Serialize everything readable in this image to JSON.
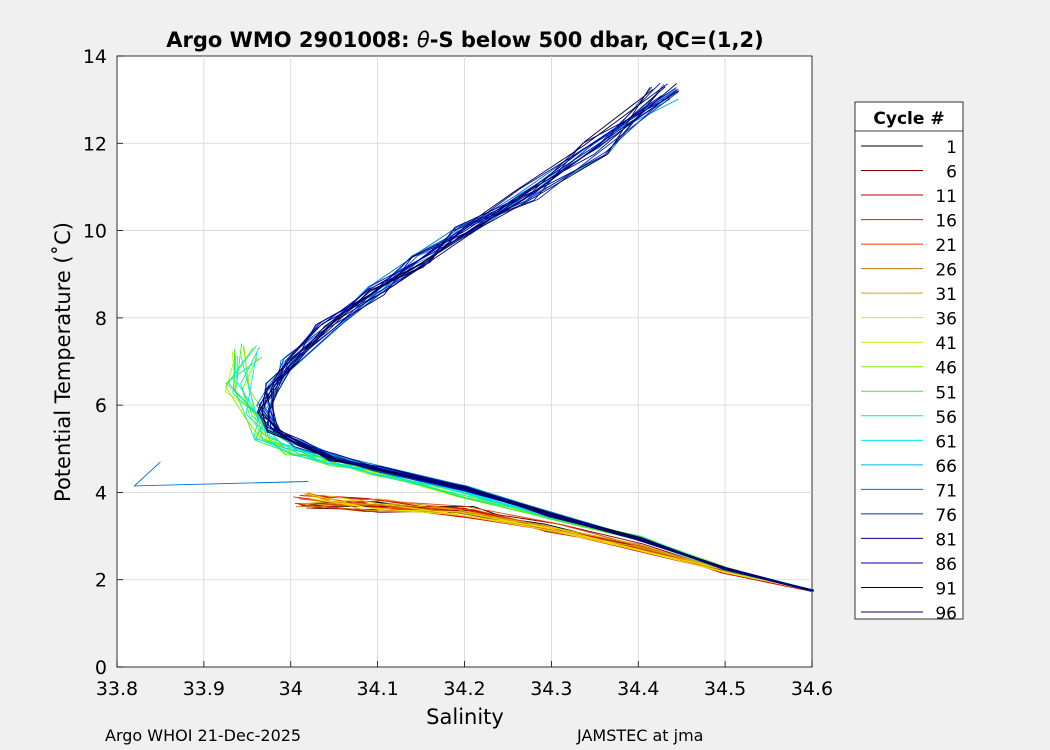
{
  "chart_data": {
    "type": "line",
    "title_prefix": "Argo WMO 2901008: ",
    "title_theta": "θ",
    "title_suffix": "-S below 500 dbar,  QC=(1,2)",
    "xlabel": "Salinity",
    "ylabel": "Potential Temperature (˚C)",
    "xlim": [
      33.8,
      34.6
    ],
    "ylim": [
      0,
      14
    ],
    "xticks": [
      "33.8",
      "33.9",
      "34",
      "34.1",
      "34.2",
      "34.3",
      "34.4",
      "34.5",
      "34.6"
    ],
    "yticks": [
      "0",
      "2",
      "4",
      "6",
      "8",
      "10",
      "12",
      "14"
    ],
    "grid": true,
    "legend_title": "Cycle #",
    "legend_location": "right-outside",
    "series": [
      {
        "name": "1",
        "color": "#000000",
        "group": "warm"
      },
      {
        "name": "6",
        "color": "#7a0000",
        "group": "warm"
      },
      {
        "name": "11",
        "color": "#c00000",
        "group": "warm"
      },
      {
        "name": "16",
        "color": "#e01a00",
        "group": "warm"
      },
      {
        "name": "21",
        "color": "#f04000",
        "group": "warm"
      },
      {
        "name": "26",
        "color": "#c87000",
        "group": "warm"
      },
      {
        "name": "31",
        "color": "#d6a800",
        "group": "warm"
      },
      {
        "name": "36",
        "color": "#f0e000",
        "group": "warm"
      },
      {
        "name": "41",
        "color": "#c0f000",
        "group": "mid"
      },
      {
        "name": "46",
        "color": "#80f000",
        "group": "mid"
      },
      {
        "name": "51",
        "color": "#30f030",
        "group": "mid"
      },
      {
        "name": "56",
        "color": "#00f0a0",
        "group": "mid"
      },
      {
        "name": "61",
        "color": "#00e8e8",
        "group": "mid"
      },
      {
        "name": "66",
        "color": "#00b0e8",
        "group": "cool"
      },
      {
        "name": "71",
        "color": "#0070d0",
        "group": "cool"
      },
      {
        "name": "76",
        "color": "#0030c0",
        "group": "cool"
      },
      {
        "name": "81",
        "color": "#000090",
        "group": "cool"
      },
      {
        "name": "86",
        "color": "#0000b0",
        "group": "cool"
      },
      {
        "name": "91",
        "color": "#000040",
        "group": "cool"
      },
      {
        "name": "96",
        "color": "#000070",
        "group": "cool"
      }
    ],
    "profiles": {
      "warm": [
        [
          34.6,
          1.75
        ],
        [
          34.5,
          2.2
        ],
        [
          34.4,
          2.75
        ],
        [
          34.3,
          3.2
        ],
        [
          34.2,
          3.55
        ],
        [
          34.1,
          3.7
        ],
        [
          34.02,
          3.8
        ]
      ],
      "mid": [
        [
          34.6,
          1.75
        ],
        [
          34.5,
          2.25
        ],
        [
          34.4,
          2.95
        ],
        [
          34.3,
          3.45
        ],
        [
          34.2,
          3.95
        ],
        [
          34.1,
          4.5
        ],
        [
          34.05,
          4.7
        ],
        [
          34.0,
          4.95
        ],
        [
          33.97,
          5.3
        ],
        [
          33.96,
          5.7
        ],
        [
          33.94,
          6.4
        ],
        [
          33.95,
          7.25
        ]
      ],
      "cool": [
        [
          34.6,
          1.75
        ],
        [
          34.5,
          2.25
        ],
        [
          34.4,
          2.95
        ],
        [
          34.3,
          3.5
        ],
        [
          34.2,
          4.1
        ],
        [
          34.1,
          4.55
        ],
        [
          34.05,
          4.8
        ],
        [
          34.01,
          5.1
        ],
        [
          33.98,
          5.45
        ],
        [
          33.97,
          5.9
        ],
        [
          33.98,
          6.4
        ],
        [
          34.0,
          7.0
        ],
        [
          34.04,
          7.8
        ],
        [
          34.1,
          8.6
        ],
        [
          34.15,
          9.3
        ],
        [
          34.2,
          10.0
        ],
        [
          34.27,
          10.8
        ],
        [
          34.35,
          11.9
        ],
        [
          34.43,
          13.2
        ]
      ]
    },
    "tail": [
      [
        34.02,
        4.25
      ],
      [
        33.82,
        4.15
      ],
      [
        33.85,
        4.7
      ]
    ]
  },
  "footer": {
    "left": "Argo WHOI 21-Dec-2025",
    "right": "JAMSTEC at jma"
  }
}
